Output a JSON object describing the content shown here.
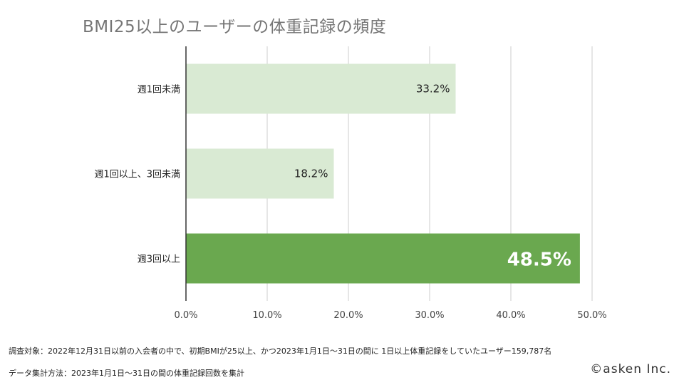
{
  "chart_data": {
    "type": "bar",
    "orientation": "horizontal",
    "title": "BMI25以上のユーザーの体重記録の頻度",
    "categories": [
      "週1回未満",
      "週1回以上、3回未満",
      "週3回以上"
    ],
    "values": [
      33.2,
      18.2,
      48.5
    ],
    "value_labels": [
      "33.2%",
      "18.2%",
      "48.5%"
    ],
    "xlim": [
      0,
      50
    ],
    "xticks": [
      0,
      10,
      20,
      30,
      40,
      50
    ],
    "xtick_labels": [
      "0.0%",
      "10.0%",
      "20.0%",
      "30.0%",
      "40.0%",
      "50.0%"
    ],
    "bar_colors": [
      "#d9ead3",
      "#d9ead3",
      "#6aa84f"
    ],
    "highlight_index": 2,
    "grid": true
  },
  "footnotes": {
    "survey_target": "調査対象：2022年12月31日以前の入会者の中で、初期BMIが25以上、かつ2023年1月1日～31日の間に 1日以上体重記録をしていたユーザー159,787名",
    "aggregation": "データ集計方法：2023年1月1日～31日の間の体重記録回数を集計"
  },
  "copyright": "©asken Inc."
}
